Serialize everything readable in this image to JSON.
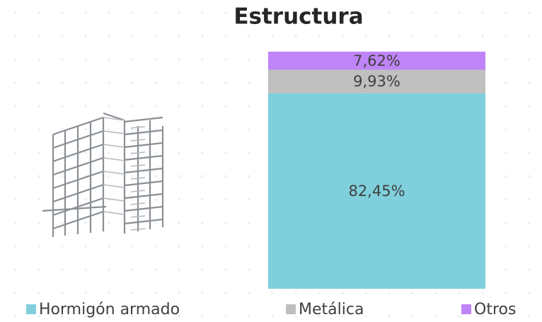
{
  "chart_data": {
    "type": "bar",
    "stacked": true,
    "title": "Estructura",
    "categories": [
      null
    ],
    "series": [
      {
        "name": "Hormigón armado",
        "color": "#7fcfdc",
        "values": [
          82.45
        ],
        "value_labels": [
          "82,45%"
        ]
      },
      {
        "name": "Metálica",
        "color": "#bfbfbf",
        "values": [
          9.93
        ],
        "value_labels": [
          "9,93%"
        ]
      },
      {
        "name": "Otros",
        "color": "#bf84f7",
        "values": [
          7.62
        ],
        "value_labels": [
          "7,62%"
        ]
      }
    ]
  }
}
